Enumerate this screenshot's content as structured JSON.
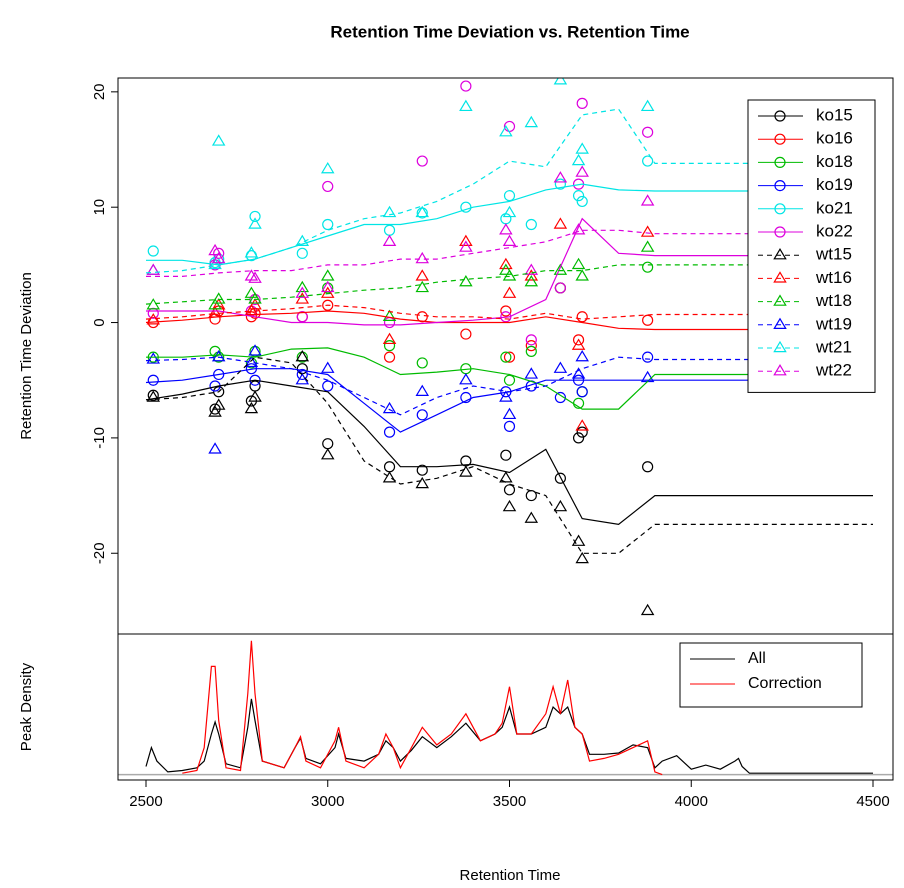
{
  "chart_data": [
    {
      "type": "line-scatter",
      "title": "Retention Time Deviation vs. Retention Time",
      "ylabel": "Retention Time Deviation",
      "xlim": [
        2423,
        4555
      ],
      "ylim": [
        -27,
        21.2
      ],
      "yticks": [
        -20,
        -10,
        0,
        10,
        20
      ],
      "legend": "top-right",
      "x": [
        2500,
        2600,
        2700,
        2800,
        2900,
        3000,
        3100,
        3200,
        3300,
        3400,
        3500,
        3600,
        3700,
        3800,
        3900,
        4500
      ],
      "peak_x": [
        2520,
        2690,
        2700,
        2790,
        2800,
        2930,
        3000,
        3170,
        3260,
        3380,
        3490,
        3500,
        3560,
        3640,
        3690,
        3700,
        3880
      ],
      "series": [
        {
          "name": "ko15",
          "color": "#000000",
          "marker": "circle",
          "linestyle": "solid",
          "values": [
            -6.7,
            -6.2,
            -5.5,
            -5,
            -5.5,
            -6,
            -9,
            -12.5,
            -12.5,
            -12.3,
            -13,
            -11,
            -17,
            -17.5,
            -15,
            -15
          ],
          "peak_values": [
            -6.3,
            -7.5,
            -6,
            -6.8,
            -5.5,
            -4,
            -10.5,
            -12.5,
            -12.8,
            -12,
            -11.5,
            -14.5,
            -15,
            -13.5,
            -10,
            -9.5,
            -12.5
          ]
        },
        {
          "name": "ko16",
          "color": "#ff0000",
          "marker": "circle",
          "linestyle": "solid",
          "values": [
            0,
            0.2,
            0.5,
            0.7,
            0.8,
            1,
            0.8,
            0.3,
            0,
            0,
            0,
            0.5,
            0,
            -0.5,
            -0.6,
            -0.6
          ],
          "peak_values": [
            0,
            0.3,
            1,
            0.5,
            0.8,
            0.5,
            1.5,
            -3,
            0.5,
            -1,
            1,
            -3,
            -2,
            3,
            -1.5,
            0.5,
            0.2
          ]
        },
        {
          "name": "ko18",
          "color": "#00bb00",
          "marker": "circle",
          "linestyle": "solid",
          "values": [
            -3,
            -3,
            -2.8,
            -3,
            -2.3,
            -2.2,
            -3,
            -4.5,
            -4.3,
            -4,
            -4.5,
            -5.5,
            -7.5,
            -7.5,
            -4.5,
            -4.5
          ],
          "peak_values": [
            -3,
            -2.5,
            -3,
            -3.5,
            -2.5,
            -3,
            3,
            -2,
            -3.5,
            -4,
            -3,
            -5,
            -2.5,
            3,
            -7,
            -6,
            4.8
          ]
        },
        {
          "name": "ko19",
          "color": "#0000ff",
          "marker": "circle",
          "linestyle": "solid",
          "values": [
            -5.2,
            -5,
            -4.5,
            -4,
            -4,
            -4.5,
            -7,
            -9.5,
            -8,
            -6.5,
            -6,
            -5,
            -5,
            -5,
            -5,
            -5
          ],
          "peak_values": [
            -5,
            -5.5,
            -4.5,
            -4,
            -5,
            -4.5,
            -5.5,
            -9.5,
            -8,
            -6.5,
            -6,
            -9,
            -5.5,
            -6.5,
            -5,
            -6,
            -3
          ]
        },
        {
          "name": "ko21",
          "color": "#00e5e5",
          "marker": "circle",
          "linestyle": "solid",
          "values": [
            5.4,
            5.4,
            5,
            5.5,
            6.5,
            7.5,
            8.5,
            8.5,
            9,
            10,
            10.5,
            11.5,
            12,
            11.5,
            11.4,
            11.4
          ],
          "peak_values": [
            6.2,
            5.2,
            5.5,
            5.8,
            9.2,
            6,
            8.5,
            8,
            9.5,
            10,
            9,
            11,
            8.5,
            12,
            11,
            10.5,
            14
          ]
        },
        {
          "name": "ko22",
          "color": "#dd00dd",
          "marker": "circle",
          "linestyle": "solid",
          "values": [
            1,
            1,
            1,
            0.5,
            0,
            0,
            -0.2,
            -0.2,
            0,
            0.2,
            0.5,
            2,
            9,
            6,
            5.8,
            5.8
          ],
          "peak_values": [
            0.8,
            5,
            6,
            1,
            2,
            0.5,
            11.8,
            0,
            14,
            20.5,
            0.5,
            17,
            -1.5,
            3,
            12,
            19,
            16.5
          ]
        },
        {
          "name": "wt15",
          "color": "#000000",
          "marker": "triangle",
          "linestyle": "dashed",
          "values": [
            -6.7,
            -6.5,
            -6,
            -3,
            -3.5,
            -7,
            -12,
            -14,
            -13.5,
            -12.5,
            -14,
            -15,
            -20,
            -20,
            -17.5,
            -17.5
          ],
          "peak_values": [
            -6.5,
            -7.8,
            -7.2,
            -7.5,
            -6.5,
            -3,
            -11.5,
            -13.5,
            -14,
            -13,
            -13.5,
            -16,
            -17,
            -16,
            -19,
            -20.5,
            -25
          ]
        },
        {
          "name": "wt16",
          "color": "#ff0000",
          "marker": "triangle",
          "linestyle": "dashed",
          "values": [
            0.3,
            0.5,
            0.8,
            1,
            1.2,
            1.5,
            1.3,
            0.8,
            0.5,
            0.5,
            0.3,
            0.8,
            0.3,
            0.5,
            0.7,
            0.7
          ],
          "peak_values": [
            0.2,
            0.8,
            1.5,
            1,
            1.5,
            2,
            2.5,
            -1.5,
            4,
            7,
            5,
            2.5,
            4,
            8.5,
            -2,
            -9,
            7.8
          ]
        },
        {
          "name": "wt18",
          "color": "#00bb00",
          "marker": "triangle",
          "linestyle": "dashed",
          "values": [
            1.6,
            1.8,
            2,
            2,
            2.2,
            2.5,
            2.8,
            3,
            3.5,
            3.8,
            4,
            4.5,
            4.5,
            5,
            5,
            5
          ],
          "peak_values": [
            1.5,
            1.5,
            2,
            2.5,
            2,
            3,
            4,
            0.5,
            3,
            3.5,
            4.5,
            4,
            3.5,
            4.5,
            5,
            4,
            6.5
          ]
        },
        {
          "name": "wt19",
          "color": "#0000ff",
          "marker": "triangle",
          "linestyle": "dashed",
          "values": [
            -3.3,
            -3.2,
            -3,
            -3.5,
            -4,
            -5,
            -6.5,
            -8,
            -6.5,
            -5.5,
            -6,
            -5.5,
            -4,
            -3,
            -3.2,
            -3.2
          ],
          "peak_values": [
            -3.2,
            -11,
            -3,
            -3.5,
            -2.5,
            -5,
            -4,
            -7.5,
            -6,
            -5,
            -6.5,
            -8,
            -4.5,
            -4,
            -4.5,
            -3,
            -4.8
          ]
        },
        {
          "name": "wt21",
          "color": "#00e5e5",
          "marker": "triangle",
          "linestyle": "dashed",
          "values": [
            4.3,
            4.5,
            5,
            5.5,
            6.5,
            8,
            9,
            9.5,
            10.5,
            12,
            14,
            13.5,
            18,
            18.5,
            13.8,
            13.8
          ],
          "peak_values": [
            4.5,
            5,
            15.7,
            6,
            8.5,
            7,
            13.3,
            9.5,
            9.5,
            18.7,
            16.5,
            9.5,
            17.3,
            21,
            14,
            15,
            18.7
          ]
        },
        {
          "name": "wt22",
          "color": "#dd00dd",
          "marker": "triangle",
          "linestyle": "dashed",
          "values": [
            4,
            4,
            4.3,
            4.5,
            4.5,
            5,
            5,
            5.5,
            5.5,
            6,
            6.5,
            7,
            8,
            8,
            7.7,
            7.7
          ],
          "peak_values": [
            4.5,
            6.2,
            5.5,
            4,
            3.8,
            2.5,
            3,
            7,
            5.5,
            6.5,
            8,
            7,
            4.5,
            12.5,
            8,
            13,
            10.5
          ]
        }
      ]
    },
    {
      "type": "line",
      "ylabel": "Peak Density",
      "xlabel": "Retention Time",
      "xlim": [
        2423,
        4555
      ],
      "ylim": [
        -0.04,
        1.04
      ],
      "xticks": [
        2500,
        3000,
        3500,
        4000,
        4500
      ],
      "baseline": 0,
      "legend": "top-right",
      "x": [
        2500,
        2515,
        2530,
        2560,
        2600,
        2640,
        2660,
        2680,
        2690,
        2700,
        2720,
        2760,
        2780,
        2790,
        2800,
        2820,
        2880,
        2910,
        2925,
        2940,
        2980,
        3020,
        3030,
        3050,
        3100,
        3140,
        3160,
        3180,
        3200,
        3230,
        3260,
        3300,
        3340,
        3380,
        3420,
        3460,
        3480,
        3500,
        3520,
        3560,
        3600,
        3620,
        3640,
        3660,
        3680,
        3700,
        3720,
        3760,
        3800,
        3840,
        3880,
        3900,
        3920,
        3960,
        4000,
        4040,
        4080,
        4120,
        4130,
        4140,
        4160,
        4200,
        4500
      ],
      "series": [
        {
          "name": "All",
          "color": "#000000",
          "values": [
            0.06,
            0.2,
            0.1,
            0.02,
            0.03,
            0.05,
            0.1,
            0.3,
            0.39,
            0.3,
            0.08,
            0.05,
            0.35,
            0.56,
            0.4,
            0.1,
            0.05,
            0.2,
            0.27,
            0.12,
            0.08,
            0.2,
            0.3,
            0.12,
            0.1,
            0.15,
            0.25,
            0.2,
            0.1,
            0.18,
            0.28,
            0.2,
            0.28,
            0.38,
            0.25,
            0.3,
            0.35,
            0.5,
            0.3,
            0.3,
            0.35,
            0.5,
            0.45,
            0.5,
            0.35,
            0.3,
            0.15,
            0.15,
            0.16,
            0.22,
            0.2,
            0.05,
            0.1,
            0.14,
            0.04,
            0.07,
            0.04,
            0.1,
            0.12,
            0.06,
            0.01,
            0.01,
            0.01
          ]
        },
        {
          "name": "Correction",
          "color": "#ff0000",
          "values": [
            null,
            null,
            null,
            null,
            0.01,
            0.03,
            0.2,
            0.8,
            0.8,
            0.4,
            0.05,
            0.03,
            0.6,
            0.99,
            0.6,
            0.1,
            0.05,
            0.2,
            0.28,
            0.1,
            0.05,
            0.25,
            0.35,
            0.1,
            0.05,
            0.15,
            0.3,
            0.2,
            0.05,
            0.2,
            0.35,
            0.22,
            0.3,
            0.45,
            0.25,
            0.3,
            0.38,
            0.65,
            0.3,
            0.3,
            0.45,
            0.65,
            0.45,
            0.7,
            0.35,
            0.3,
            0.1,
            0.12,
            0.15,
            0.2,
            0.25,
            0.02,
            0,
            null,
            null,
            null,
            null,
            null,
            null,
            null,
            null,
            null,
            null
          ]
        }
      ]
    }
  ]
}
